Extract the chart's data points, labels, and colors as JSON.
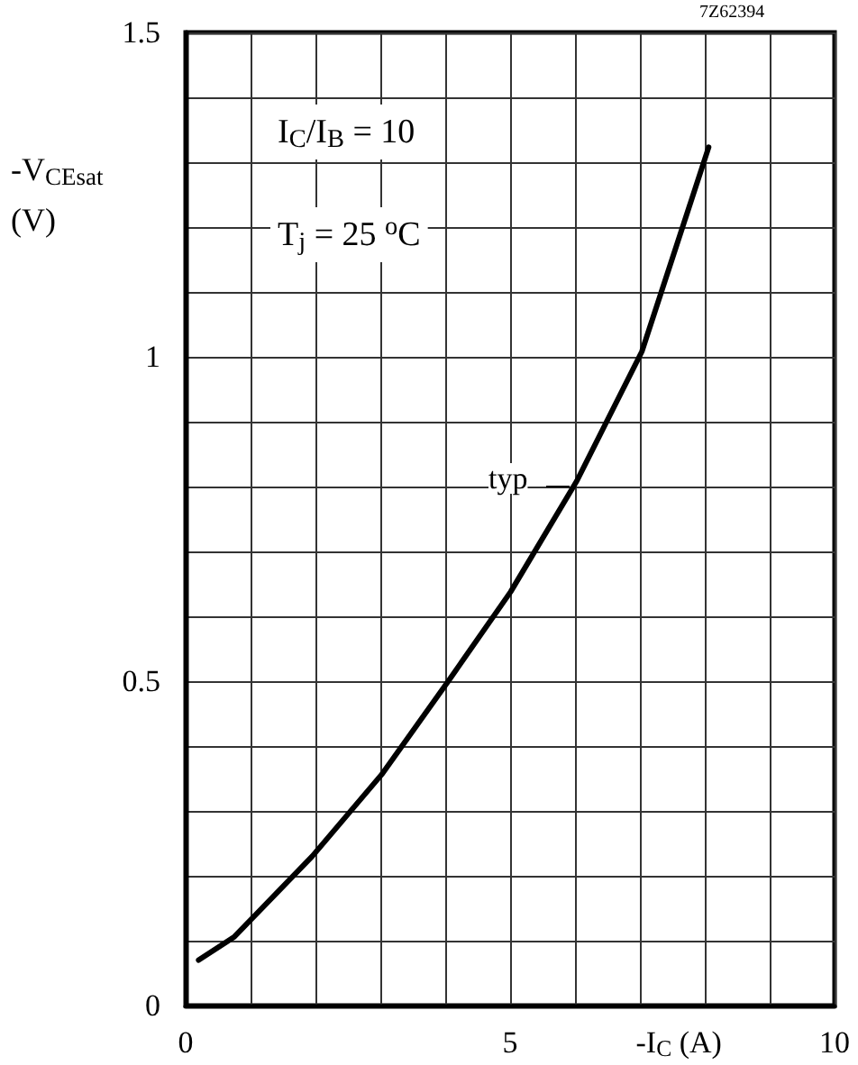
{
  "chart_data": {
    "type": "line",
    "xlabel": "-I$_{C}$ (A)",
    "ylabel": "-V$_{CEsat}$\n(V)",
    "x": [
      0.2,
      0.75,
      1.95,
      3.02,
      4.04,
      5.01,
      6.03,
      7.03,
      8.06
    ],
    "series": [
      {
        "color": "#000000",
        "values": [
          0.07,
          0.106,
          0.23,
          0.356,
          0.499,
          0.638,
          0.809,
          1.008,
          1.323
        ]
      }
    ],
    "xlim": [
      0,
      10
    ],
    "ylim": [
      0,
      1.5
    ],
    "xticks": [
      0,
      {
        "value": 1,
        "label": null
      },
      {
        "value": 2,
        "label": null
      },
      {
        "value": 3,
        "label": null
      },
      {
        "value": 4,
        "label": null
      },
      5,
      {
        "value": 6,
        "label": null
      },
      {
        "value": 7,
        "label": null
      },
      {
        "value": 8,
        "label": null
      },
      {
        "value": 9,
        "label": null
      },
      10
    ],
    "yticks": [
      0,
      {
        "value": 0.1,
        "label": null
      },
      {
        "value": 0.2,
        "label": null
      },
      {
        "value": 0.3,
        "label": null
      },
      {
        "value": 0.4,
        "label": null
      },
      0.5,
      {
        "value": 0.6,
        "label": null
      },
      {
        "value": 0.7,
        "label": null
      },
      {
        "value": 0.8,
        "label": null
      },
      {
        "value": 0.9,
        "label": null
      },
      1,
      {
        "value": 1.1,
        "label": null
      },
      {
        "value": 1.2,
        "label": null
      },
      {
        "value": 1.3,
        "label": null
      },
      {
        "value": 1.4,
        "label": null
      },
      1.5
    ],
    "grid": true,
    "marker": "none",
    "line_style": "solid",
    "annotations": [
      {
        "text": "typ",
        "x": 6.0,
        "y": 0.8
      },
      "I$_{C}$/I$_{B}$ = 10",
      "T$_{j}$ = 25 $^{o}$C",
      "7Z62394"
    ]
  }
}
